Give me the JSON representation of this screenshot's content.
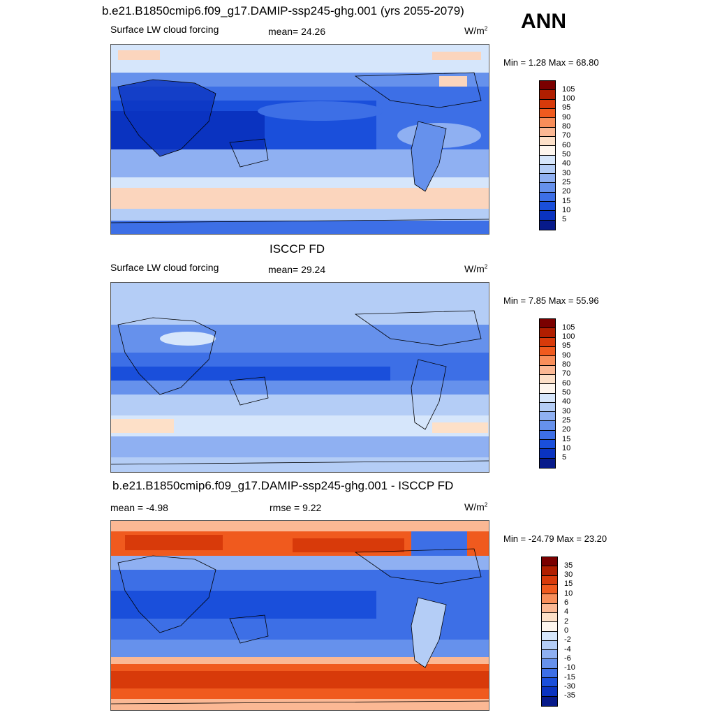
{
  "season_label": "ANN",
  "panels": [
    {
      "title": "b.e21.B1850cmip6.f09_g17.DAMIP-ssp245-ghg.001 (yrs 2055-2079)",
      "left_label": "Surface LW cloud forcing",
      "center_label": "mean=  24.26",
      "units": "W/m",
      "units_sup": "2",
      "minmax": "Min =   1.28 Max =  68.80",
      "colorbar": {
        "labels": [
          "105",
          "100",
          "95",
          "90",
          "80",
          "70",
          "60",
          "50",
          "40",
          "30",
          "25",
          "20",
          "15",
          "10",
          "5"
        ],
        "colors": [
          "#7a0000",
          "#b01e00",
          "#d83a0a",
          "#f05a1e",
          "#f88e5a",
          "#fbb894",
          "#fde0c8",
          "#fef6ee",
          "#d6e6fb",
          "#b4cdf6",
          "#8fb0f2",
          "#6691ec",
          "#3d6fe6",
          "#1a4fdb",
          "#0a33c0",
          "#071a8a"
        ]
      }
    },
    {
      "title": "ISCCP FD",
      "left_label": "Surface LW cloud forcing",
      "center_label": "mean=  29.24",
      "units": "W/m",
      "units_sup": "2",
      "minmax": "Min =   7.85 Max =  55.96",
      "colorbar": {
        "labels": [
          "105",
          "100",
          "95",
          "90",
          "80",
          "70",
          "60",
          "50",
          "40",
          "30",
          "25",
          "20",
          "15",
          "10",
          "5"
        ],
        "colors": [
          "#7a0000",
          "#b01e00",
          "#d83a0a",
          "#f05a1e",
          "#f88e5a",
          "#fbb894",
          "#fde0c8",
          "#fef6ee",
          "#d6e6fb",
          "#b4cdf6",
          "#8fb0f2",
          "#6691ec",
          "#3d6fe6",
          "#1a4fdb",
          "#0a33c0",
          "#071a8a"
        ]
      }
    },
    {
      "title": "b.e21.B1850cmip6.f09_g17.DAMIP-ssp245-ghg.001 - ISCCP FD",
      "left_label": "mean =  -4.98",
      "center_label": "rmse =    9.22",
      "units": "W/m",
      "units_sup": "2",
      "minmax": "Min = -24.79 Max =  23.20",
      "colorbar": {
        "labels": [
          "35",
          "30",
          "15",
          "10",
          "6",
          "4",
          "2",
          "0",
          "-2",
          "-4",
          "-6",
          "-10",
          "-15",
          "-30",
          "-35"
        ],
        "colors": [
          "#7a0000",
          "#b01e00",
          "#d83a0a",
          "#f05a1e",
          "#f88e5a",
          "#fbb894",
          "#fde0c8",
          "#fef6ee",
          "#d6e6fb",
          "#b4cdf6",
          "#8fb0f2",
          "#6691ec",
          "#3d6fe6",
          "#1a4fdb",
          "#0a33c0",
          "#071a8a"
        ]
      }
    }
  ]
}
